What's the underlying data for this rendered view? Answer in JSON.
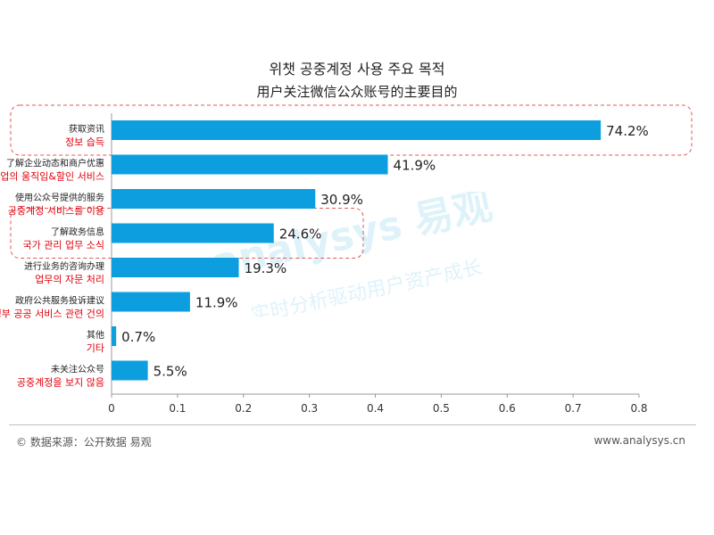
{
  "title_ko": "위챗 공중계정 사용 주요 목적",
  "title_zh": "用户关注微信公众账号的主要目的",
  "footer": {
    "source": "© 数据来源：公开数据 易观",
    "site": "www.analysys.cn"
  },
  "watermark": {
    "brand": "analysys 易观",
    "slogan": "实时分析驱动用户资产成长"
  },
  "colors": {
    "bar": "#0d9ee0",
    "annotation": "#e0000b",
    "highlight_border": "#e05a5a",
    "axis": "#999999"
  },
  "chart_data": {
    "type": "bar",
    "orientation": "horizontal",
    "categories": [
      "获取资讯",
      "了解企业动态和商户优惠",
      "使用公众号提供的服务",
      "了解政务信息",
      "进行业务的咨询办理",
      "政府公共服务投诉建议",
      "其他",
      "未关注公众号"
    ],
    "category_translations": [
      "정보 습득",
      "기업의 움직임&할인 서비스",
      "공중계정 서비스를 이용",
      "국가 관리 업무 소식",
      "업무의 자문 처리",
      "정부 공공 서비스 관련 건의",
      "기타",
      "공중계정을 보지 않음"
    ],
    "values": [
      0.742,
      0.419,
      0.309,
      0.246,
      0.193,
      0.119,
      0.007,
      0.055
    ],
    "value_labels": [
      "74.2%",
      "41.9%",
      "30.9%",
      "24.6%",
      "19.3%",
      "11.9%",
      "0.7%",
      "5.5%"
    ],
    "xlim": [
      0,
      0.8
    ],
    "xticks": [
      "0",
      "0.1",
      "0.2",
      "0.3",
      "0.4",
      "0.5",
      "0.6",
      "0.7",
      "0.8"
    ],
    "xtick_values": [
      0,
      0.1,
      0.2,
      0.3,
      0.4,
      0.5,
      0.6,
      0.7,
      0.8
    ],
    "highlighted_categories": [
      "获取资讯",
      "了解政务信息"
    ],
    "grid": false,
    "legend": "none"
  }
}
